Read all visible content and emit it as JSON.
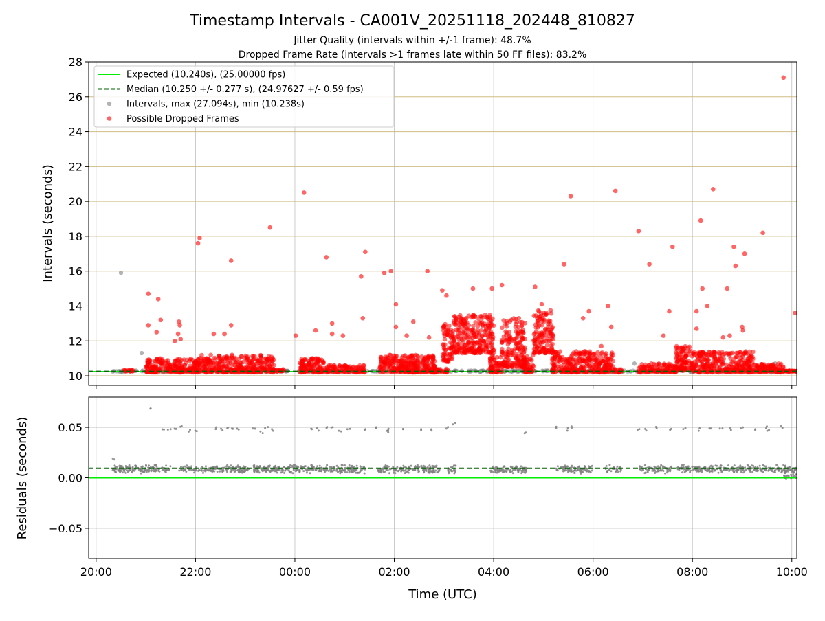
{
  "chart_data": {
    "type": "scatter",
    "title": "Timestamp Intervals - CA001V_20251118_202448_810827",
    "subtitles": [
      "Jitter Quality (intervals within +/-1 frame): 48.7%",
      "Dropped Frame Rate (intervals >1 frames late within 50 FF files): 83.2%"
    ],
    "xlabel": "Time (UTC)",
    "x_tick_labels": [
      "20:00",
      "22:00",
      "00:00",
      "02:00",
      "04:00",
      "06:00",
      "08:00",
      "10:00"
    ],
    "top": {
      "ylabel": "Intervals (seconds)",
      "ylim": [
        9.45,
        28
      ],
      "yticks": [
        10,
        12,
        14,
        16,
        18,
        20,
        22,
        24,
        26,
        28
      ],
      "ytick_labels": [
        "10",
        "12",
        "14",
        "16",
        "18",
        "20",
        "22",
        "24",
        "26",
        "28"
      ],
      "expected_line": {
        "value": 10.24,
        "color": "#00ee00"
      },
      "median_line": {
        "value": 10.25,
        "color": "#006400"
      },
      "legend": {
        "placement": "upper-left",
        "entries": [
          {
            "label": "Expected (10.240s), (25.00000 fps)",
            "kind": "line",
            "color": "#00ee00"
          },
          {
            "label": "Median (10.250 +/- 0.277 s), (24.97627 +/- 0.59 fps)",
            "kind": "dashed-line",
            "color": "#006400"
          },
          {
            "label": "Intervals, max (27.094s), min (10.238s)",
            "kind": "marker",
            "color": "#808080"
          },
          {
            "label": "Possible Dropped Frames",
            "kind": "marker",
            "color": "#ff0000"
          }
        ]
      },
      "grey_points": [
        [
          "20:30",
          15.9
        ],
        [
          "20:55",
          11.3
        ],
        [
          "21:05",
          10.7
        ],
        [
          "20:20",
          10.25
        ],
        [
          "23:25",
          10.3
        ],
        [
          "01:40",
          10.3
        ],
        [
          "01:52",
          11.0
        ],
        [
          "06:50",
          10.7
        ],
        [
          "07:30",
          10.3
        ],
        [
          "09:40",
          10.7
        ]
      ],
      "red_outliers": [
        [
          "21:03",
          14.7
        ],
        [
          "21:03",
          12.9
        ],
        [
          "21:13",
          12.5
        ],
        [
          "21:15",
          14.4
        ],
        [
          "21:18",
          13.2
        ],
        [
          "21:35",
          12.0
        ],
        [
          "21:40",
          13.1
        ],
        [
          "21:41",
          12.9
        ],
        [
          "21:42",
          12.1
        ],
        [
          "21:39",
          12.4
        ],
        [
          "22:03",
          17.6
        ],
        [
          "22:05",
          17.9
        ],
        [
          "22:22",
          12.4
        ],
        [
          "22:35",
          12.4
        ],
        [
          "22:43",
          16.6
        ],
        [
          "22:43",
          12.9
        ],
        [
          "23:30",
          18.5
        ],
        [
          "00:01",
          12.3
        ],
        [
          "00:11",
          20.5
        ],
        [
          "00:25",
          12.6
        ],
        [
          "00:38",
          16.8
        ],
        [
          "00:45",
          12.4
        ],
        [
          "00:45",
          13.0
        ],
        [
          "00:58",
          12.3
        ],
        [
          "01:20",
          15.7
        ],
        [
          "01:22",
          13.3
        ],
        [
          "01:25",
          17.1
        ],
        [
          "01:48",
          15.9
        ],
        [
          "01:56",
          16.0
        ],
        [
          "02:02",
          14.1
        ],
        [
          "02:02",
          12.8
        ],
        [
          "02:15",
          12.3
        ],
        [
          "02:23",
          13.1
        ],
        [
          "02:40",
          16.0
        ],
        [
          "02:42",
          12.2
        ],
        [
          "02:58",
          14.9
        ],
        [
          "03:03",
          14.6
        ],
        [
          "03:35",
          15.0
        ],
        [
          "03:58",
          15.0
        ],
        [
          "04:10",
          15.2
        ],
        [
          "04:50",
          15.1
        ],
        [
          "04:58",
          14.1
        ],
        [
          "05:25",
          16.4
        ],
        [
          "05:33",
          20.3
        ],
        [
          "05:48",
          13.3
        ],
        [
          "05:55",
          13.7
        ],
        [
          "06:10",
          11.7
        ],
        [
          "06:18",
          14.0
        ],
        [
          "06:27",
          20.6
        ],
        [
          "06:22",
          12.8
        ],
        [
          "06:55",
          18.3
        ],
        [
          "07:08",
          16.4
        ],
        [
          "07:25",
          12.3
        ],
        [
          "07:32",
          13.7
        ],
        [
          "07:36",
          17.4
        ],
        [
          "08:05",
          13.7
        ],
        [
          "08:05",
          12.7
        ],
        [
          "08:10",
          18.9
        ],
        [
          "08:12",
          15.0
        ],
        [
          "08:18",
          14.0
        ],
        [
          "08:25",
          20.7
        ],
        [
          "08:37",
          12.2
        ],
        [
          "08:42",
          15.0
        ],
        [
          "08:45",
          12.3
        ],
        [
          "08:50",
          17.4
        ],
        [
          "08:52",
          16.3
        ],
        [
          "09:00",
          12.8
        ],
        [
          "09:01",
          12.6
        ],
        [
          "09:03",
          17.0
        ],
        [
          "09:25",
          18.2
        ],
        [
          "09:50",
          27.1
        ],
        [
          "10:04",
          13.6
        ]
      ],
      "red_clusters": [
        {
          "start": "20:33",
          "end": "20:45",
          "low": 10.25,
          "high": 10.35,
          "n": 14
        },
        {
          "start": "21:00",
          "end": "22:05",
          "low": 10.2,
          "high": 11.0,
          "n": 230
        },
        {
          "start": "22:03",
          "end": "23:35",
          "low": 10.2,
          "high": 11.2,
          "n": 320
        },
        {
          "start": "23:35",
          "end": "23:48",
          "low": 10.25,
          "high": 10.4,
          "n": 18
        },
        {
          "start": "00:06",
          "end": "00:35",
          "low": 10.2,
          "high": 11.0,
          "n": 110
        },
        {
          "start": "00:35",
          "end": "01:25",
          "low": 10.2,
          "high": 10.6,
          "n": 100
        },
        {
          "start": "01:42",
          "end": "02:50",
          "low": 10.2,
          "high": 11.2,
          "n": 300
        },
        {
          "start": "02:48",
          "end": "03:05",
          "low": 10.2,
          "high": 10.4,
          "n": 30
        },
        {
          "start": "02:58",
          "end": "03:10",
          "low": 10.8,
          "high": 13.0,
          "n": 60
        },
        {
          "start": "03:08",
          "end": "04:00",
          "low": 11.3,
          "high": 13.5,
          "n": 280
        },
        {
          "start": "03:55",
          "end": "04:10",
          "low": 10.2,
          "high": 11.2,
          "n": 60
        },
        {
          "start": "04:10",
          "end": "04:38",
          "low": 10.5,
          "high": 13.3,
          "n": 180
        },
        {
          "start": "04:35",
          "end": "04:48",
          "low": 10.2,
          "high": 11.2,
          "n": 50
        },
        {
          "start": "04:48",
          "end": "05:12",
          "low": 11.3,
          "high": 13.8,
          "n": 130
        },
        {
          "start": "05:10",
          "end": "06:25",
          "low": 10.2,
          "high": 11.4,
          "n": 300
        },
        {
          "start": "06:25",
          "end": "06:35",
          "low": 10.2,
          "high": 10.4,
          "n": 18
        },
        {
          "start": "06:55",
          "end": "07:40",
          "low": 10.2,
          "high": 10.7,
          "n": 110
        },
        {
          "start": "07:40",
          "end": "08:00",
          "low": 10.3,
          "high": 11.7,
          "n": 100
        },
        {
          "start": "08:00",
          "end": "09:15",
          "low": 10.2,
          "high": 11.4,
          "n": 300
        },
        {
          "start": "09:15",
          "end": "09:50",
          "low": 10.2,
          "high": 10.7,
          "n": 100
        },
        {
          "start": "09:50",
          "end": "10:10",
          "low": 10.25,
          "high": 10.3,
          "n": 40
        }
      ]
    },
    "bottom": {
      "ylabel": "Residuals (seconds)",
      "ylim": [
        -0.08,
        0.08
      ],
      "yticks": [
        -0.05,
        0,
        0.05
      ],
      "ytick_labels": [
        "−0.05",
        "0.00",
        "0.05"
      ],
      "expected_line": {
        "value": 0.0,
        "color": "#00ee00"
      },
      "median_line": {
        "value": 0.0094,
        "color": "#006400"
      },
      "point_color": "#808080",
      "band": {
        "start": "20:20",
        "end": "10:10",
        "low": 0.004,
        "high": 0.013
      },
      "gaps": [
        [
          "21:30",
          "21:40"
        ],
        [
          "23:05",
          "23:10"
        ],
        [
          "01:25",
          "01:40"
        ],
        [
          "02:55",
          "03:05"
        ],
        [
          "03:15",
          "03:55"
        ],
        [
          "04:40",
          "05:15"
        ],
        [
          "06:00",
          "06:15"
        ],
        [
          "06:35",
          "06:55"
        ],
        [
          "07:35",
          "07:42"
        ]
      ],
      "high_points": [
        [
          "20:22",
          0.019
        ],
        [
          "21:04",
          0.068
        ],
        [
          "21:22",
          0.049
        ],
        [
          "21:28",
          0.048
        ],
        [
          "21:35",
          0.048
        ],
        [
          "21:42",
          0.05
        ],
        [
          "21:52",
          0.047
        ],
        [
          "22:00",
          0.047
        ],
        [
          "22:25",
          0.049
        ],
        [
          "22:32",
          0.048
        ],
        [
          "22:40",
          0.05
        ],
        [
          "22:46",
          0.049
        ],
        [
          "22:52",
          0.048
        ],
        [
          "23:10",
          0.048
        ],
        [
          "23:20",
          0.045
        ],
        [
          "23:26",
          0.049
        ],
        [
          "23:33",
          0.047
        ],
        [
          "00:20",
          0.049
        ],
        [
          "00:28",
          0.048
        ],
        [
          "00:38",
          0.049
        ],
        [
          "00:46",
          0.05
        ],
        [
          "00:55",
          0.047
        ],
        [
          "01:05",
          0.048
        ],
        [
          "01:25",
          0.048
        ],
        [
          "01:40",
          0.049
        ],
        [
          "01:52",
          0.048
        ],
        [
          "01:53",
          0.046
        ],
        [
          "02:12",
          0.048
        ],
        [
          "02:33",
          0.048
        ],
        [
          "02:45",
          0.048
        ],
        [
          "03:05",
          0.05
        ],
        [
          "03:12",
          0.053
        ],
        [
          "04:37",
          0.045
        ],
        [
          "05:15",
          0.05
        ],
        [
          "05:28",
          0.048
        ],
        [
          "05:36",
          0.05
        ],
        [
          "06:55",
          0.048
        ],
        [
          "07:05",
          0.048
        ],
        [
          "07:16",
          0.049
        ],
        [
          "07:35",
          0.048
        ],
        [
          "07:50",
          0.048
        ],
        [
          "08:07",
          0.048
        ],
        [
          "08:22",
          0.048
        ],
        [
          "08:35",
          0.048
        ],
        [
          "08:45",
          0.048
        ],
        [
          "09:00",
          0.049
        ],
        [
          "09:16",
          0.047
        ],
        [
          "09:28",
          0.05
        ],
        [
          "09:32",
          0.048
        ],
        [
          "09:48",
          0.051
        ]
      ]
    }
  }
}
